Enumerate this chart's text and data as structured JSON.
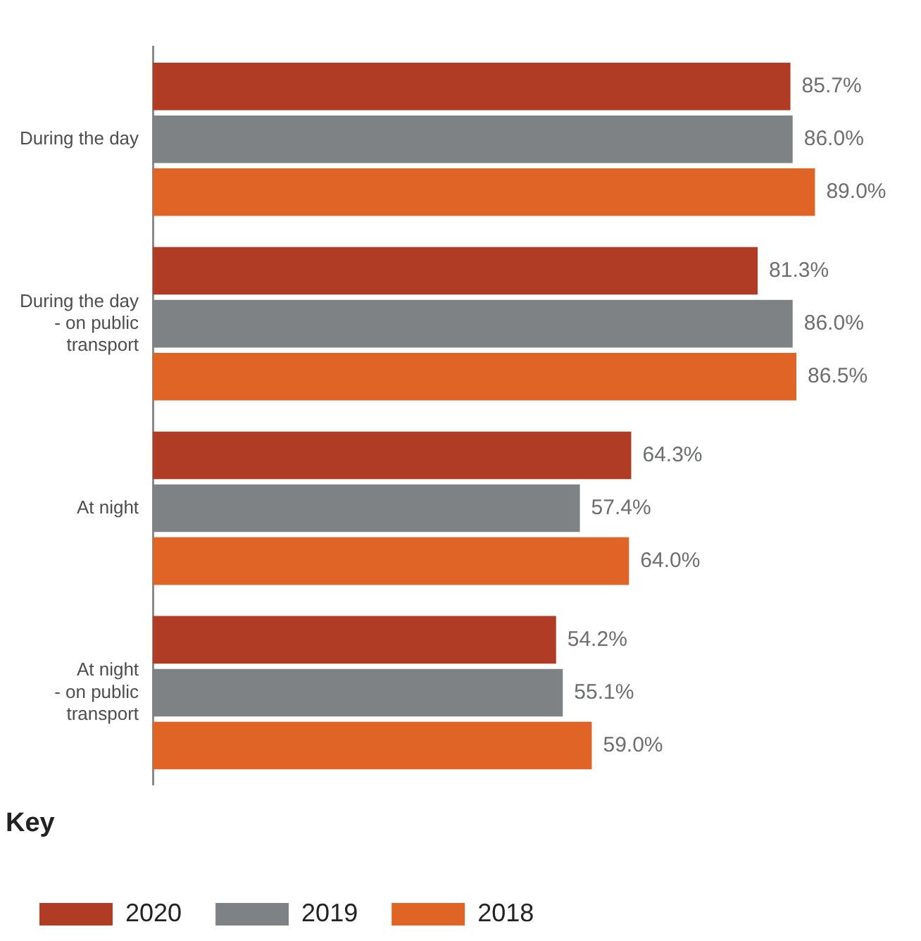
{
  "chart_data": {
    "type": "bar",
    "orientation": "horizontal",
    "categories": [
      "During the day",
      "During the day - on public transport",
      "At night",
      "At night - on public transport"
    ],
    "series": [
      {
        "name": "2020",
        "color": "#b03c26",
        "values": [
          85.7,
          81.3,
          64.3,
          54.2
        ],
        "value_labels": [
          "85.7%",
          "81.3%",
          "64.3%",
          "54.2%"
        ]
      },
      {
        "name": "2019",
        "color": "#7f8285",
        "values": [
          86.0,
          86.0,
          57.4,
          55.1
        ],
        "value_labels": [
          "86.0%",
          "86.0%",
          "57.4%",
          "55.1%"
        ]
      },
      {
        "name": "2018",
        "color": "#e06426",
        "values": [
          89.0,
          86.5,
          64.0,
          59.0
        ],
        "value_labels": [
          "89.0%",
          "86.5%",
          "64.0%",
          "59.0%"
        ]
      }
    ],
    "tick_labels": "y",
    "grid": false,
    "legend": "bottom",
    "legend_title": "Key"
  }
}
